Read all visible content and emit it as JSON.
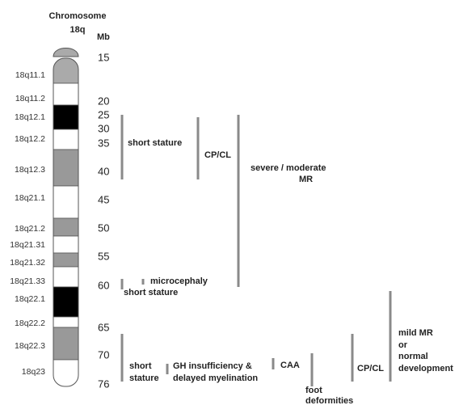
{
  "header": {
    "title_line1": "Chromosome",
    "title_line2": "18q",
    "unit": "Mb"
  },
  "bands": [
    "18q11.1",
    "18q11.2",
    "18q12.1",
    "18q12.2",
    "18q12.3",
    "18q21.1",
    "18q21.2",
    "18q21.31",
    "18q21.32",
    "18q21.33",
    "18q22.1",
    "18q22.2",
    "18q22.3",
    "18q23"
  ],
  "mb_ticks": [
    "15",
    "20",
    "25",
    "30",
    "35",
    "40",
    "45",
    "50",
    "55",
    "60",
    "65",
    "70",
    "76"
  ],
  "annotations": [
    {
      "lines": [
        "short stature"
      ]
    },
    {
      "lines": [
        "CP/CL"
      ]
    },
    {
      "lines": [
        "severe / moderate",
        "MR"
      ]
    },
    {
      "lines": [
        "microcephaly"
      ]
    },
    {
      "lines": [
        "short stature"
      ]
    },
    {
      "lines": [
        "short",
        "stature"
      ]
    },
    {
      "lines": [
        "GH insufficiency &",
        "delayed myelination"
      ]
    },
    {
      "lines": [
        "CAA"
      ]
    },
    {
      "lines": [
        "foot",
        "deformities"
      ]
    },
    {
      "lines": [
        "CP/CL"
      ]
    },
    {
      "lines": [
        "mild MR",
        "or",
        "normal",
        "development"
      ]
    }
  ]
}
